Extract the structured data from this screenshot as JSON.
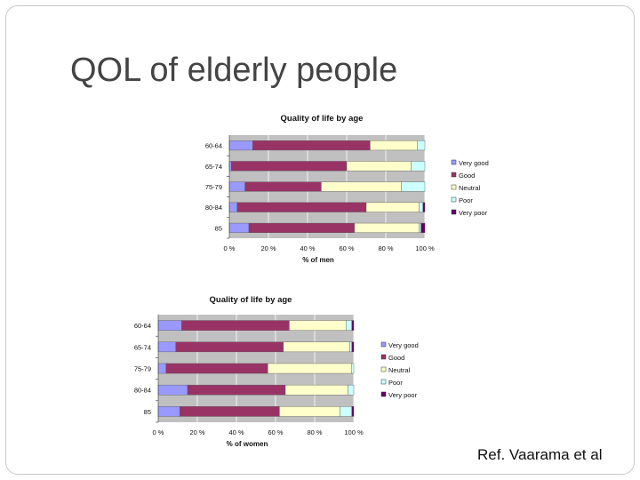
{
  "slide": {
    "title": "QOL of elderly people",
    "reference": "Ref. Vaarama et al"
  },
  "chart_data": [
    {
      "type": "bar",
      "orientation": "horizontal",
      "stacked": "100%",
      "title": "Quality of life by age",
      "xlabel": "% of men",
      "ylabel": "",
      "xlim": [
        0,
        100
      ],
      "x_ticks": [
        "0 %",
        "20 %",
        "40 %",
        "60 %",
        "80 %",
        "100 %"
      ],
      "categories": [
        "60-64",
        "65-74",
        "75-79",
        "80-84",
        "85"
      ],
      "series": [
        {
          "name": "Very good",
          "color": "#9999ff",
          "values": [
            12,
            1,
            8,
            4,
            10
          ]
        },
        {
          "name": "Good",
          "color": "#993366",
          "values": [
            60,
            59,
            39,
            66,
            54
          ]
        },
        {
          "name": "Neutral",
          "color": "#ffffcc",
          "values": [
            24,
            33,
            41,
            27,
            33
          ]
        },
        {
          "name": "Poor",
          "color": "#ccffff",
          "values": [
            4,
            7,
            12,
            2,
            1
          ]
        },
        {
          "name": "Very poor",
          "color": "#660066",
          "values": [
            0,
            0,
            0,
            1,
            2
          ]
        }
      ],
      "legend_position": "right",
      "grid": true
    },
    {
      "type": "bar",
      "orientation": "horizontal",
      "stacked": "100%",
      "title": "Quality of life by age",
      "xlabel": "% of women",
      "ylabel": "",
      "xlim": [
        0,
        100
      ],
      "x_ticks": [
        "0 %",
        "20 %",
        "40 %",
        "60 %",
        "80 %",
        "100 %"
      ],
      "categories": [
        "60-64",
        "65-74",
        "75-79",
        "80-84",
        "85"
      ],
      "series": [
        {
          "name": "Very good",
          "color": "#9999ff",
          "values": [
            12,
            9,
            4,
            15,
            11
          ]
        },
        {
          "name": "Good",
          "color": "#993366",
          "values": [
            55,
            55,
            52,
            50,
            51
          ]
        },
        {
          "name": "Neutral",
          "color": "#ffffcc",
          "values": [
            29,
            34,
            43,
            32,
            31
          ]
        },
        {
          "name": "Poor",
          "color": "#ccffff",
          "values": [
            3,
            1,
            1,
            3,
            6
          ]
        },
        {
          "name": "Very poor",
          "color": "#660066",
          "values": [
            1,
            1,
            0,
            0,
            1
          ]
        }
      ],
      "legend_position": "right",
      "grid": true
    }
  ]
}
